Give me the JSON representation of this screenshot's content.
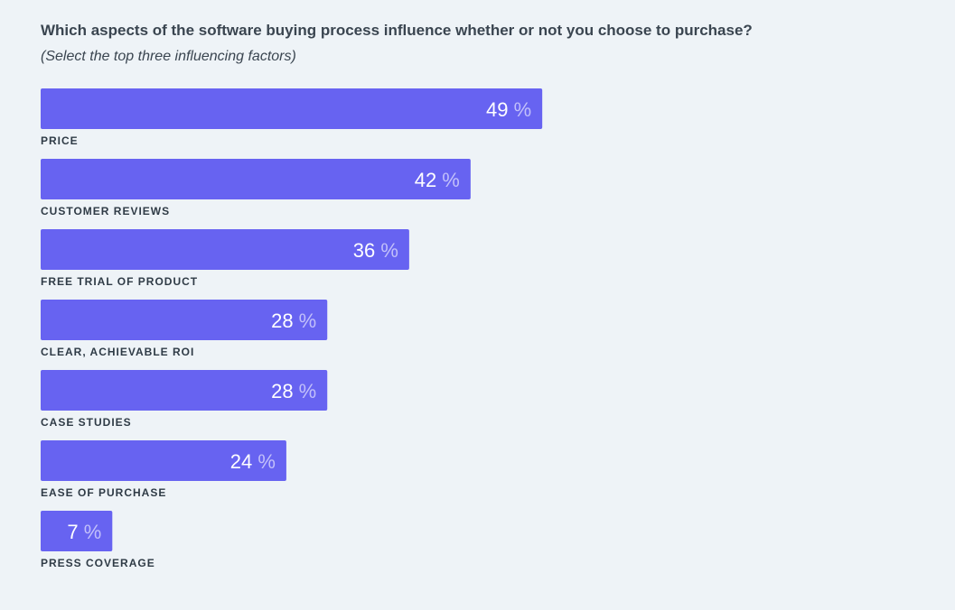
{
  "header": {
    "title": "Which aspects of the software buying process influence whether or not you choose to purchase?",
    "subtitle": "(Select the top three influencing factors)"
  },
  "colors": {
    "bar": "#6763f1",
    "value_text": "#ffffff",
    "percent_sign": "#c2c0fa",
    "label_text": "#2f3b46",
    "background": "#eef3f7"
  },
  "chart_data": {
    "type": "bar",
    "orientation": "horizontal",
    "title": "Which aspects of the software buying process influence whether or not you choose to purchase?",
    "subtitle": "(Select the top three influencing factors)",
    "categories": [
      "PRICE",
      "CUSTOMER REVIEWS",
      "FREE TRIAL OF PRODUCT",
      "CLEAR, ACHIEVABLE ROI",
      "CASE STUDIES",
      "EASE OF PURCHASE",
      "PRESS COVERAGE"
    ],
    "values": [
      49,
      42,
      36,
      28,
      28,
      24,
      7
    ],
    "unit": "%",
    "xlim": [
      0,
      100
    ],
    "grid": false,
    "legend": "none"
  }
}
